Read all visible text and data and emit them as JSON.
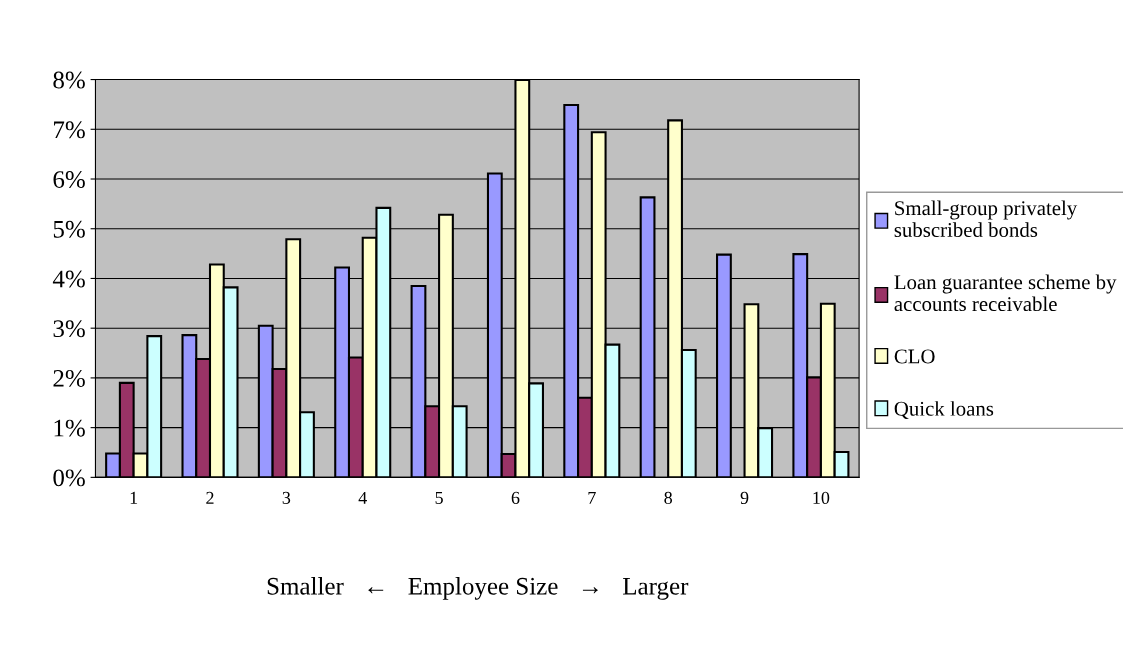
{
  "chart_data": {
    "type": "bar",
    "xlabel": "Smaller　←　Employee Size　→　Larger",
    "categories": [
      "1",
      "2",
      "3",
      "4",
      "5",
      "6",
      "7",
      "8",
      "9",
      "10"
    ],
    "series": [
      {
        "name": "Small-group privately subscribed bonds",
        "color": "#9999ff",
        "values": [
          0.48,
          2.86,
          3.05,
          4.22,
          3.85,
          6.11,
          7.49,
          5.63,
          4.48,
          4.49
        ]
      },
      {
        "name": "Loan guarantee scheme by accounts receivable",
        "color": "#993366",
        "values": [
          1.9,
          2.38,
          2.18,
          2.41,
          1.43,
          0.47,
          1.6,
          null,
          null,
          2.01
        ]
      },
      {
        "name": "CLO",
        "color": "#ffffcc",
        "values": [
          0.48,
          4.28,
          4.79,
          4.82,
          5.28,
          7.99,
          6.94,
          7.18,
          3.48,
          3.49
        ]
      },
      {
        "name": "Quick loans",
        "color": "#ccffff",
        "values": [
          2.84,
          3.82,
          1.31,
          5.42,
          1.43,
          1.89,
          2.67,
          2.56,
          0.99,
          0.51
        ]
      }
    ],
    "ylim": [
      0,
      8
    ],
    "yticks": [
      {
        "value": 0,
        "label": "0%"
      },
      {
        "value": 1,
        "label": "1%"
      },
      {
        "value": 2,
        "label": "2%"
      },
      {
        "value": 3,
        "label": "3%"
      },
      {
        "value": 4,
        "label": "4%"
      },
      {
        "value": 5,
        "label": "5%"
      },
      {
        "value": 6,
        "label": "6%"
      },
      {
        "value": 7,
        "label": "7%"
      },
      {
        "value": 8,
        "label": "8%"
      }
    ],
    "grid": "y",
    "legend": "right"
  }
}
